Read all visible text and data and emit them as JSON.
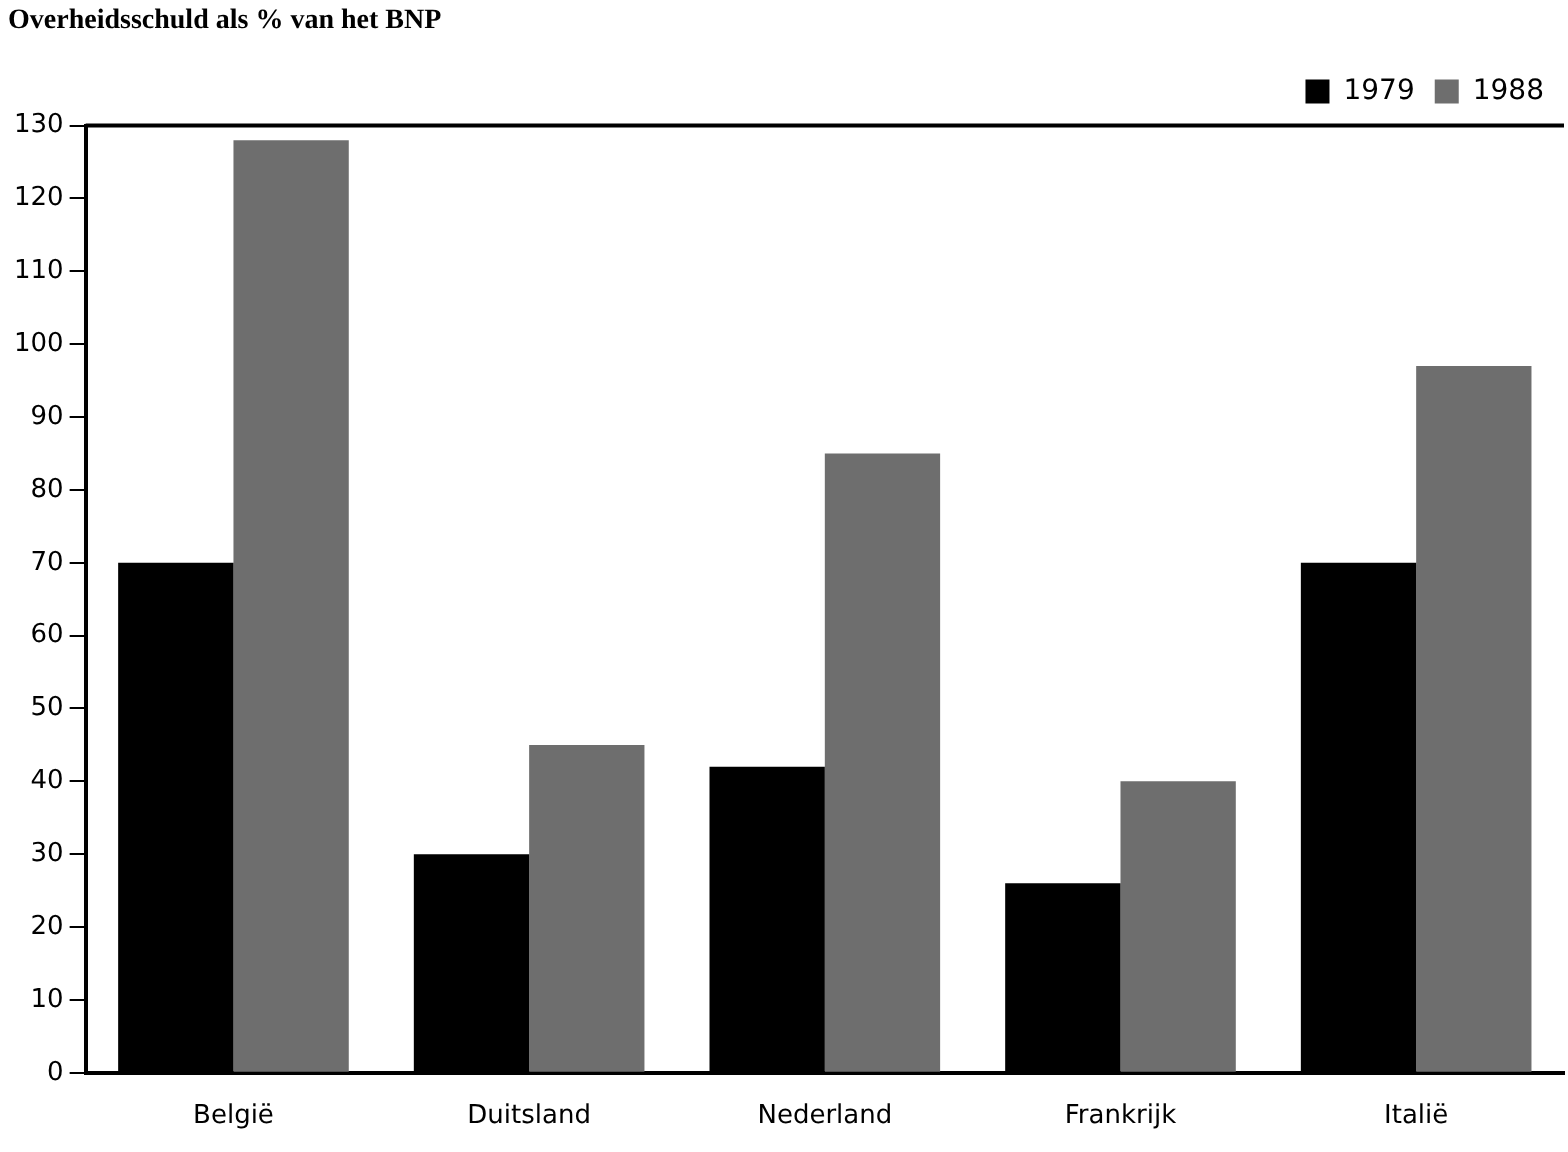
{
  "chart_data": {
    "type": "bar",
    "title": "Overheidsschuld als % van het BNP",
    "categories": [
      "België",
      "Duitsland",
      "Nederland",
      "Frankrijk",
      "Italië"
    ],
    "series": [
      {
        "name": "1979",
        "color": "#000000",
        "values": [
          70,
          30,
          42,
          26,
          70
        ]
      },
      {
        "name": "1988",
        "color": "#6e6e6e",
        "values": [
          128,
          45,
          85,
          40,
          97
        ]
      }
    ],
    "ylim": [
      0,
      130
    ],
    "yticks": [
      0,
      10,
      20,
      30,
      40,
      50,
      60,
      70,
      80,
      90,
      100,
      110,
      120,
      130
    ],
    "grid": false,
    "legend": "top right"
  }
}
